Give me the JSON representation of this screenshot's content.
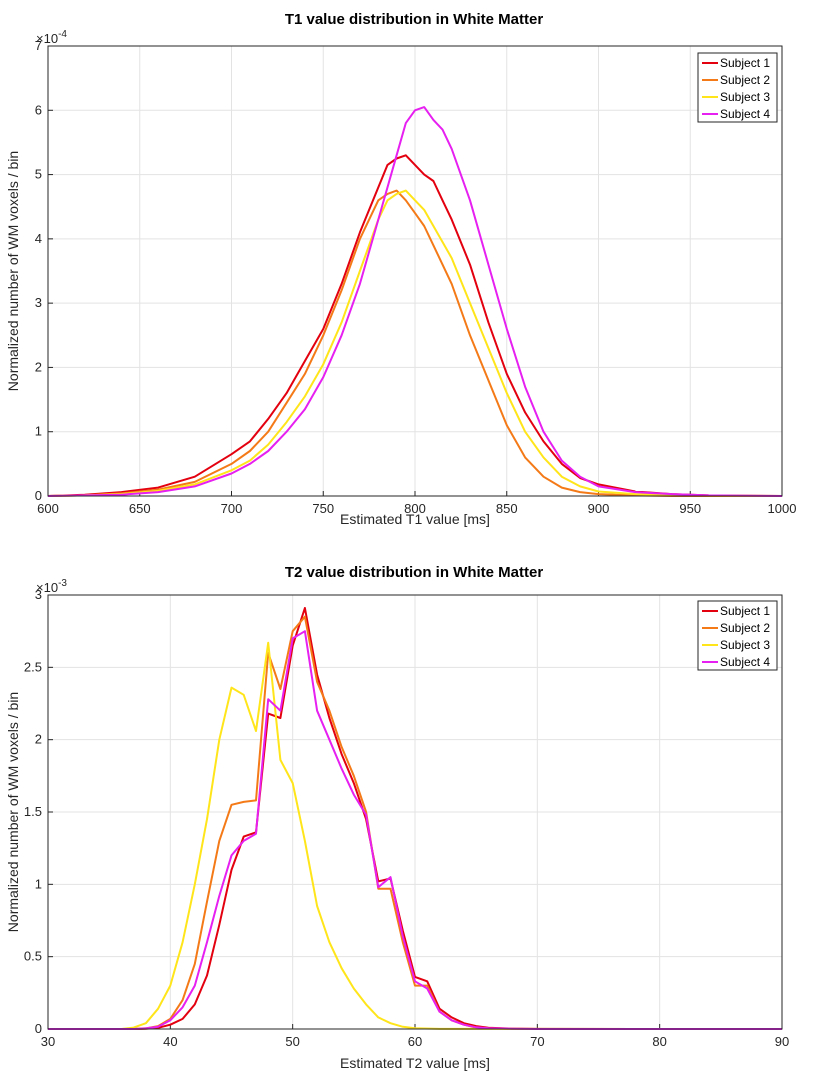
{
  "chart_data": [
    {
      "type": "line",
      "title": "T1 value distribution in White Matter",
      "xlabel": "Estimated T1 value [ms]",
      "ylabel": "Normalized number of WM voxels / bin",
      "exponent_label": "×10",
      "exponent_power": "-4",
      "xlim": [
        600,
        1000
      ],
      "ylim": [
        0,
        7
      ],
      "xticks": [
        "600",
        "650",
        "700",
        "750",
        "800",
        "850",
        "900",
        "950",
        "1000"
      ],
      "yticks": [
        "0",
        "1",
        "2",
        "3",
        "4",
        "5",
        "6",
        "7"
      ],
      "grid": true,
      "legend_position": "top-right",
      "series": [
        {
          "name": "Subject 1",
          "color": "#e3000f",
          "x": [
            600,
            620,
            640,
            660,
            680,
            700,
            710,
            720,
            730,
            740,
            750,
            760,
            770,
            780,
            785,
            790,
            795,
            800,
            805,
            810,
            815,
            820,
            830,
            840,
            850,
            860,
            870,
            880,
            890,
            900,
            920,
            940,
            960,
            1000
          ],
          "y": [
            0,
            0.02,
            0.06,
            0.13,
            0.3,
            0.65,
            0.85,
            1.2,
            1.6,
            2.1,
            2.6,
            3.3,
            4.1,
            4.8,
            5.15,
            5.25,
            5.3,
            5.15,
            5.0,
            4.9,
            4.6,
            4.3,
            3.6,
            2.7,
            1.9,
            1.3,
            0.85,
            0.5,
            0.28,
            0.18,
            0.07,
            0.03,
            0.01,
            0
          ]
        },
        {
          "name": "Subject 2",
          "color": "#f47a18",
          "x": [
            600,
            620,
            640,
            660,
            680,
            700,
            710,
            720,
            730,
            740,
            750,
            760,
            770,
            780,
            785,
            790,
            795,
            800,
            805,
            810,
            820,
            830,
            840,
            850,
            860,
            870,
            880,
            890,
            900,
            920,
            940,
            1000
          ],
          "y": [
            0,
            0.01,
            0.04,
            0.1,
            0.22,
            0.5,
            0.7,
            1.0,
            1.45,
            1.9,
            2.5,
            3.2,
            4.0,
            4.6,
            4.7,
            4.75,
            4.6,
            4.4,
            4.2,
            3.9,
            3.3,
            2.5,
            1.8,
            1.1,
            0.6,
            0.3,
            0.13,
            0.06,
            0.03,
            0.01,
            0,
            0
          ]
        },
        {
          "name": "Subject 3",
          "color": "#ffe51a",
          "x": [
            600,
            620,
            640,
            660,
            680,
            700,
            710,
            720,
            730,
            740,
            750,
            760,
            770,
            780,
            785,
            790,
            795,
            800,
            805,
            810,
            820,
            830,
            840,
            850,
            860,
            870,
            880,
            890,
            900,
            920,
            940,
            1000
          ],
          "y": [
            0,
            0.01,
            0.03,
            0.08,
            0.18,
            0.4,
            0.55,
            0.8,
            1.15,
            1.55,
            2.05,
            2.7,
            3.5,
            4.3,
            4.6,
            4.7,
            4.75,
            4.6,
            4.45,
            4.2,
            3.7,
            3.0,
            2.3,
            1.6,
            1.0,
            0.6,
            0.3,
            0.15,
            0.07,
            0.03,
            0.01,
            0
          ]
        },
        {
          "name": "Subject 4",
          "color": "#e620f0",
          "x": [
            600,
            620,
            640,
            660,
            680,
            700,
            710,
            720,
            730,
            740,
            750,
            760,
            770,
            780,
            790,
            795,
            800,
            805,
            810,
            815,
            820,
            830,
            840,
            850,
            860,
            870,
            880,
            890,
            900,
            920,
            940,
            960,
            1000
          ],
          "y": [
            0,
            0.01,
            0.02,
            0.06,
            0.15,
            0.35,
            0.5,
            0.7,
            1.0,
            1.35,
            1.85,
            2.5,
            3.3,
            4.3,
            5.3,
            5.8,
            6.0,
            6.05,
            5.85,
            5.7,
            5.4,
            4.6,
            3.6,
            2.6,
            1.7,
            1.0,
            0.55,
            0.3,
            0.15,
            0.06,
            0.03,
            0.01,
            0
          ]
        }
      ]
    },
    {
      "type": "line",
      "title": "T2 value distribution in White Matter",
      "xlabel": "Estimated T2 value [ms]",
      "ylabel": "Normalized number of WM voxels / bin",
      "exponent_label": "×10",
      "exponent_power": "-3",
      "xlim": [
        30,
        90
      ],
      "ylim": [
        0,
        3
      ],
      "xticks": [
        "30",
        "40",
        "50",
        "60",
        "70",
        "80",
        "90"
      ],
      "yticks": [
        "0",
        "0.5",
        "1",
        "1.5",
        "2",
        "2.5",
        "3"
      ],
      "grid": true,
      "legend_position": "top-right",
      "series": [
        {
          "name": "Subject 1",
          "color": "#e3000f",
          "x": [
            30,
            37,
            38,
            39,
            40,
            41,
            42,
            43,
            44,
            45,
            46,
            47,
            48,
            49,
            50,
            51,
            52,
            53,
            54,
            55,
            56,
            57,
            58,
            59,
            60,
            61,
            62,
            63,
            64,
            65,
            66,
            68,
            70,
            90
          ],
          "y": [
            0,
            0,
            0.002,
            0.008,
            0.03,
            0.07,
            0.17,
            0.37,
            0.72,
            1.1,
            1.33,
            1.36,
            2.18,
            2.15,
            2.65,
            2.91,
            2.45,
            2.15,
            1.9,
            1.7,
            1.45,
            1.02,
            1.04,
            0.68,
            0.36,
            0.33,
            0.14,
            0.08,
            0.04,
            0.02,
            0.008,
            0.003,
            0.001,
            0
          ]
        },
        {
          "name": "Subject 2",
          "color": "#f47a18",
          "x": [
            30,
            37,
            38,
            39,
            40,
            41,
            42,
            43,
            44,
            45,
            46,
            47,
            48,
            49,
            50,
            51,
            52,
            53,
            54,
            55,
            56,
            57,
            58,
            59,
            60,
            61,
            62,
            63,
            64,
            65,
            66,
            68,
            70,
            90
          ],
          "y": [
            0,
            0,
            0.005,
            0.02,
            0.07,
            0.2,
            0.45,
            0.88,
            1.3,
            1.55,
            1.57,
            1.58,
            2.6,
            2.35,
            2.75,
            2.85,
            2.4,
            2.2,
            1.95,
            1.75,
            1.5,
            0.97,
            0.97,
            0.6,
            0.3,
            0.3,
            0.12,
            0.06,
            0.03,
            0.01,
            0.004,
            0.001,
            0,
            0
          ]
        },
        {
          "name": "Subject 3",
          "color": "#ffe51a",
          "x": [
            30,
            36,
            37,
            38,
            39,
            40,
            41,
            42,
            43,
            44,
            45,
            46,
            47,
            48,
            49,
            50,
            51,
            52,
            53,
            54,
            55,
            56,
            57,
            58,
            59,
            60,
            62,
            90
          ],
          "y": [
            0,
            0,
            0.01,
            0.04,
            0.14,
            0.3,
            0.6,
            1.0,
            1.45,
            2.0,
            2.36,
            2.31,
            2.06,
            2.67,
            1.86,
            1.7,
            1.3,
            0.85,
            0.6,
            0.42,
            0.28,
            0.17,
            0.08,
            0.04,
            0.015,
            0.005,
            0.001,
            0
          ]
        },
        {
          "name": "Subject 4",
          "color": "#e620f0",
          "x": [
            30,
            37,
            38,
            39,
            40,
            41,
            42,
            43,
            44,
            45,
            46,
            47,
            48,
            49,
            50,
            51,
            52,
            53,
            54,
            55,
            56,
            57,
            58,
            59,
            60,
            61,
            62,
            63,
            64,
            65,
            66,
            68,
            70,
            90
          ],
          "y": [
            0,
            0,
            0.004,
            0.015,
            0.06,
            0.15,
            0.3,
            0.6,
            0.92,
            1.2,
            1.3,
            1.35,
            2.28,
            2.2,
            2.7,
            2.75,
            2.2,
            2.0,
            1.8,
            1.62,
            1.48,
            0.98,
            1.05,
            0.64,
            0.33,
            0.28,
            0.12,
            0.06,
            0.03,
            0.012,
            0.005,
            0.002,
            0,
            0
          ]
        }
      ]
    }
  ]
}
